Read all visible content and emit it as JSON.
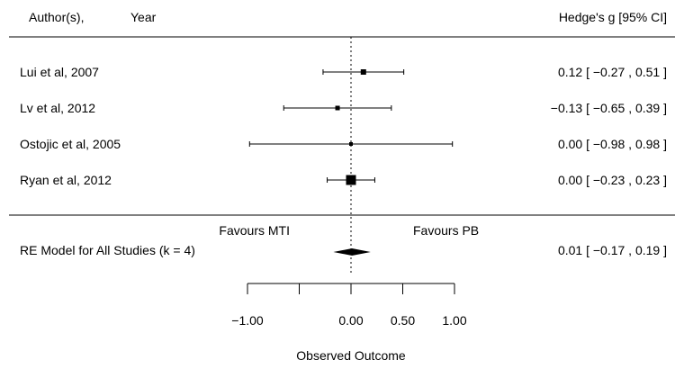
{
  "chart_data": {
    "type": "forest",
    "header": {
      "left_a": "Author(s),",
      "left_b": "Year",
      "right": "Hedge's g [95% CI]"
    },
    "studies": [
      {
        "label": "Lui et al, 2007",
        "estimate": 0.12,
        "ci_low": -0.27,
        "ci_high": 0.51,
        "text": "0.12 [ −0.27 , 0.51 ]"
      },
      {
        "label": "Lv et al, 2012",
        "estimate": -0.13,
        "ci_low": -0.65,
        "ci_high": 0.39,
        "text": "−0.13 [ −0.65 , 0.39 ]"
      },
      {
        "label": "Ostojic et al, 2005",
        "estimate": 0.0,
        "ci_low": -0.98,
        "ci_high": 0.98,
        "text": "0.00 [ −0.98 , 0.98 ]"
      },
      {
        "label": "Ryan et al, 2012",
        "estimate": 0.0,
        "ci_low": -0.23,
        "ci_high": 0.23,
        "text": "0.00 [ −0.23 , 0.23 ]"
      }
    ],
    "summary": {
      "label": "RE Model for All Studies (k = 4)",
      "estimate": 0.01,
      "ci_low": -0.17,
      "ci_high": 0.19,
      "text": "0.01 [ −0.17 , 0.19 ]"
    },
    "favours_left": "Favours MTI",
    "favours_right": "Favours PB",
    "x_axis": {
      "xlabel": "Observed Outcome",
      "xlim": [
        -1.0,
        1.0
      ],
      "ticks": [
        -1.0,
        -0.5,
        0.0,
        0.5,
        1.0
      ],
      "tick_labels": [
        "−1.00",
        "",
        "0.00",
        "0.50",
        "1.00"
      ],
      "reference_line": 0
    }
  }
}
